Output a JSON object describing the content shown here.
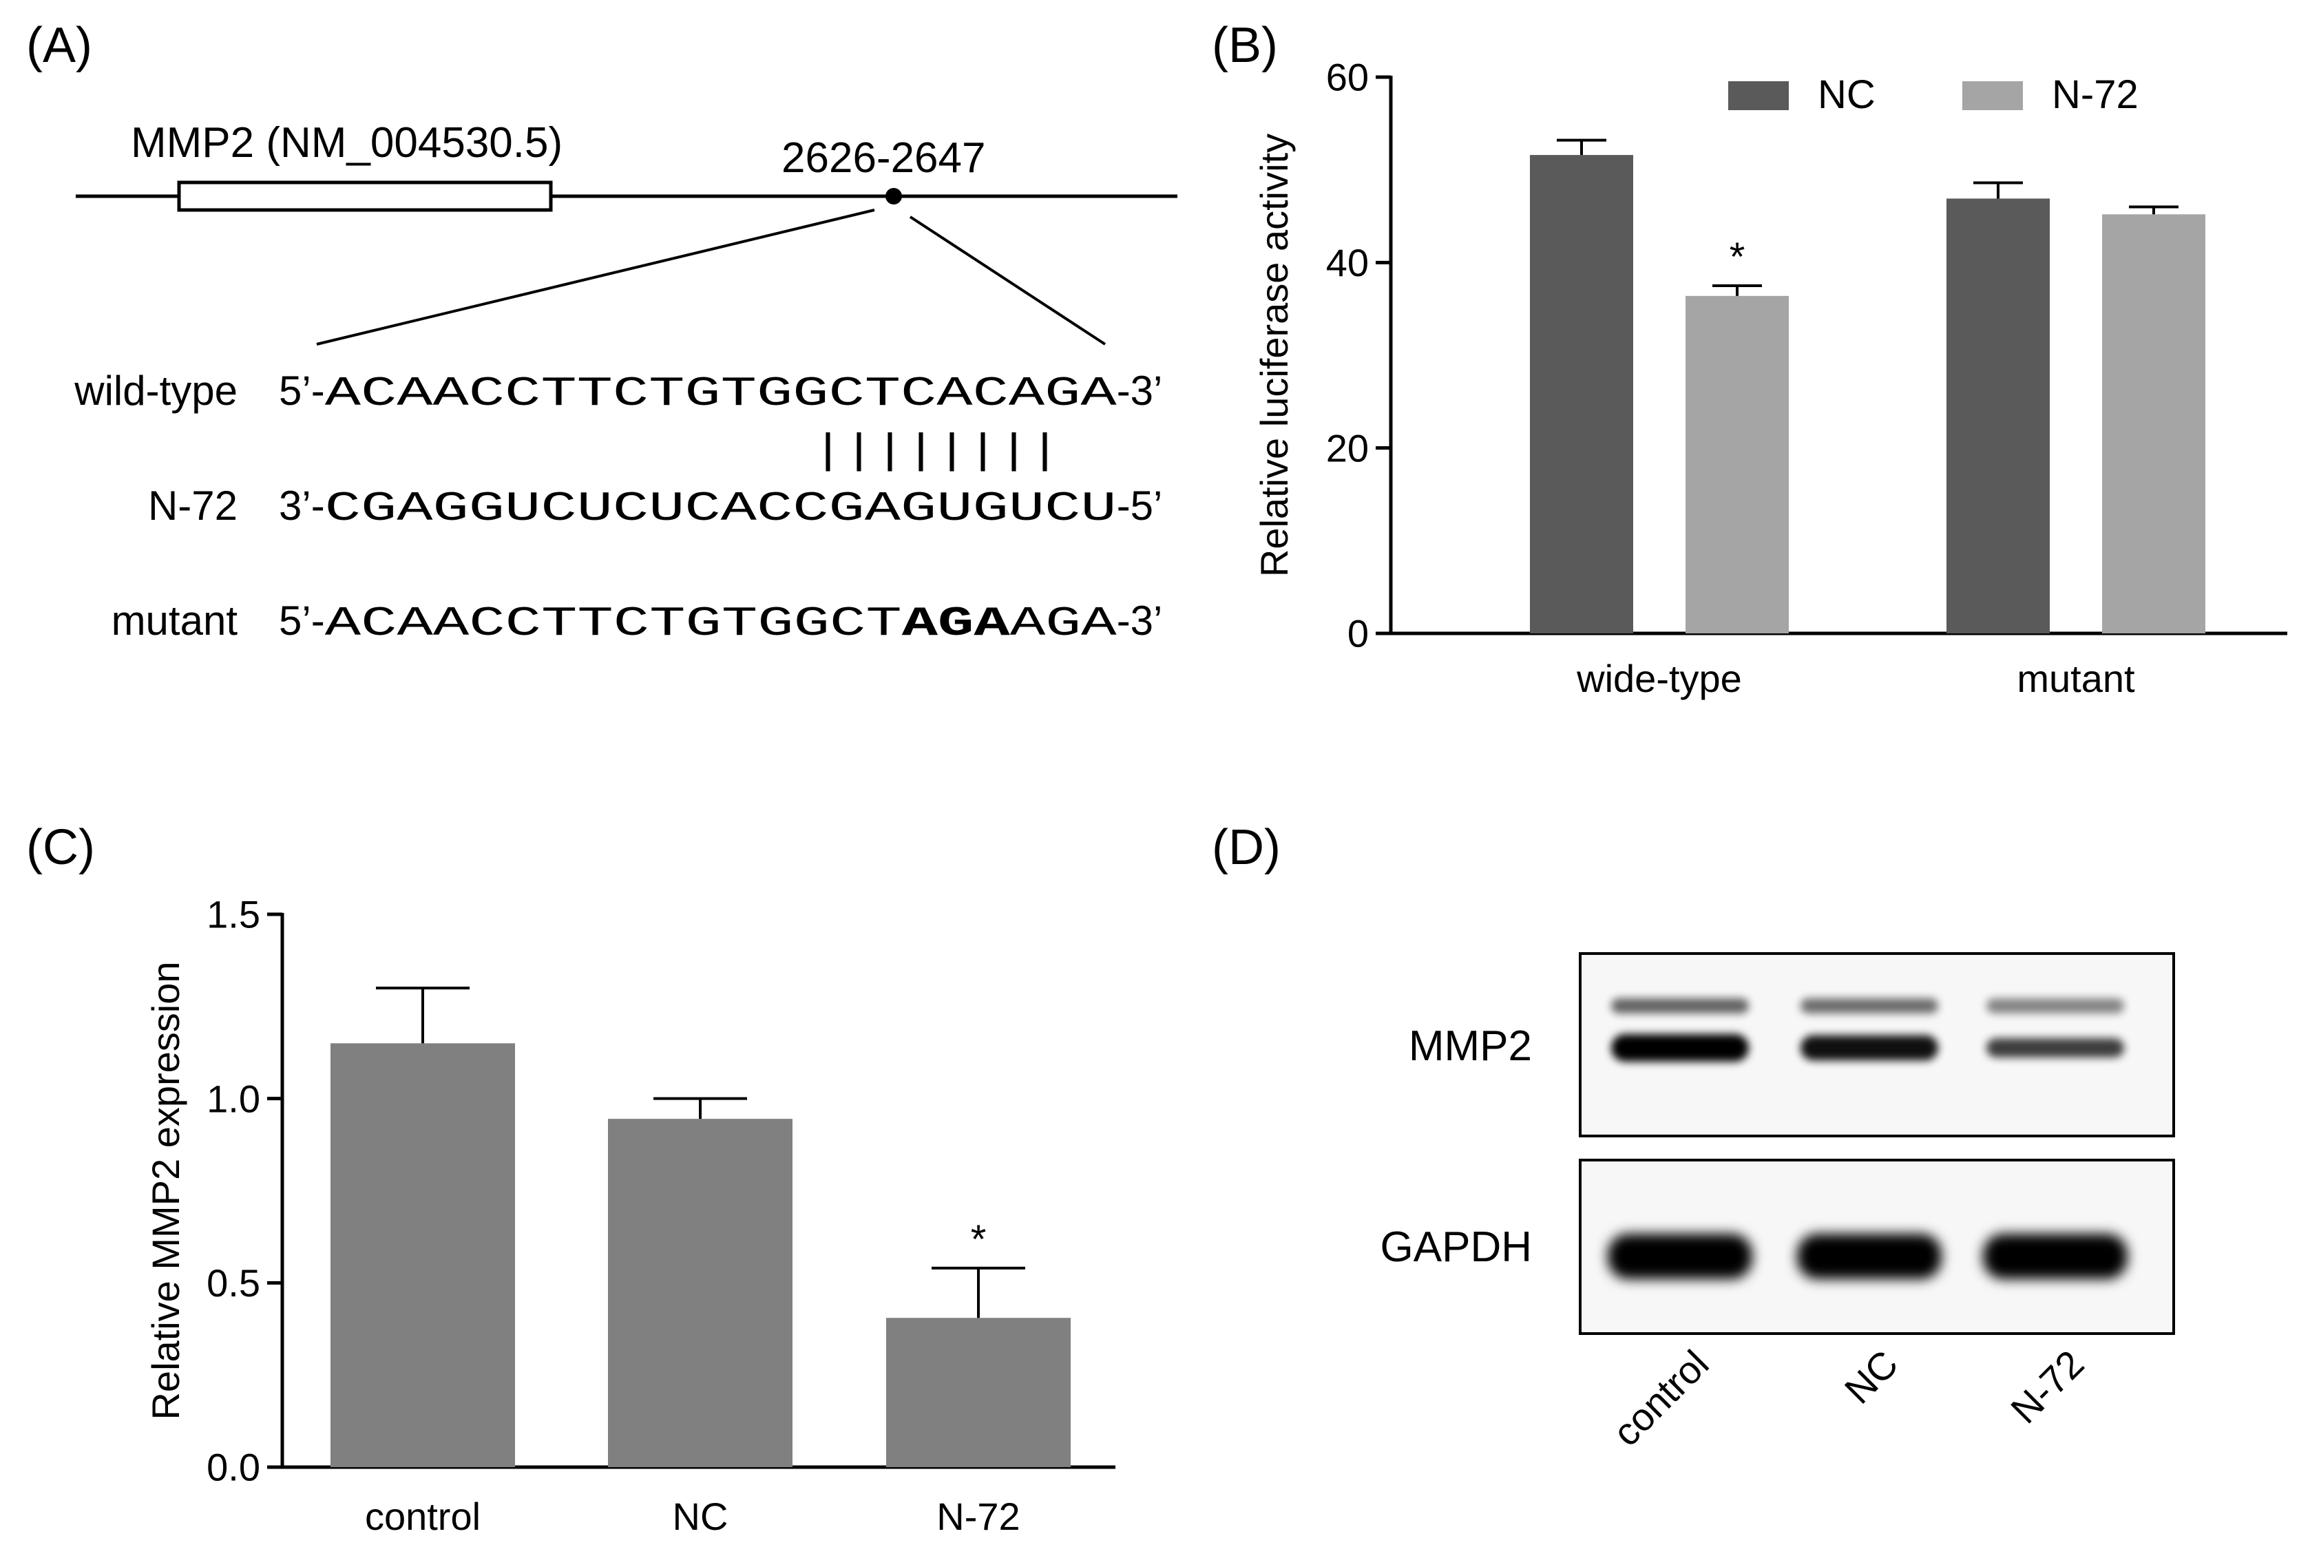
{
  "panel_labels": {
    "a": "(A)",
    "b": "(B)",
    "c": "(C)",
    "d": "(D)"
  },
  "panel_a": {
    "gene_label": "MMP2 (NM_004530.5)",
    "site_label": "2626-2647",
    "rows": [
      {
        "name": "wild-type",
        "prefix": "5’-",
        "seq": "ACAACCTTCTGTGGCTCACAGA",
        "bold": "",
        "rest": "",
        "suffix": "-3’"
      },
      {
        "name": "N-72",
        "prefix": "3’-",
        "seq": "CGAGGUCUCUCACCGAGUGUCU",
        "bold": "",
        "rest": "",
        "suffix": "-5’"
      },
      {
        "name": "mutant",
        "prefix": "5’-",
        "seq": "ACAACCTTCTGTGGCT",
        "bold": "AGA",
        "rest": "AGA",
        "suffix": "-3’"
      }
    ],
    "pairing_marks": "||||||||"
  },
  "chart_data": [
    {
      "type": "bar",
      "panel": "B",
      "categories": [
        "wide-type",
        "mutant"
      ],
      "series": [
        {
          "name": "NC",
          "values": [
            51.6,
            46.9
          ],
          "errors": [
            1.6,
            1.7
          ],
          "color": "#5a5a5a"
        },
        {
          "name": "N-72",
          "values": [
            36.4,
            45.2
          ],
          "errors": [
            1.1,
            0.8
          ],
          "color": "#a5a5a5"
        }
      ],
      "annotations": [
        {
          "category": "wide-type",
          "series": "N-72",
          "text": "*"
        }
      ],
      "ylabel": "Relative luciferase activity",
      "ylim": [
        0,
        60
      ],
      "yticks": [
        "0",
        "20",
        "40",
        "60"
      ],
      "legend_position": "top-right"
    },
    {
      "type": "bar",
      "panel": "C",
      "categories": [
        "control",
        "NC",
        "N-72"
      ],
      "values": [
        1.15,
        0.945,
        0.405
      ],
      "errors": [
        0.15,
        0.055,
        0.135
      ],
      "color": "#808080",
      "annotations": [
        {
          "category": "N-72",
          "text": "*"
        }
      ],
      "ylabel": "Relative MMP2 expression",
      "ylim": [
        0,
        1.5
      ],
      "yticks": [
        "0.0",
        "0.5",
        "1.0",
        "1.5"
      ]
    }
  ],
  "panel_d": {
    "rows": [
      "MMP2",
      "GAPDH"
    ],
    "lanes": [
      "control",
      "NC",
      "N-72"
    ],
    "mmp2_intensity": [
      1.0,
      0.85,
      0.45
    ],
    "gapdh_intensity": [
      1.0,
      1.0,
      1.0
    ]
  }
}
